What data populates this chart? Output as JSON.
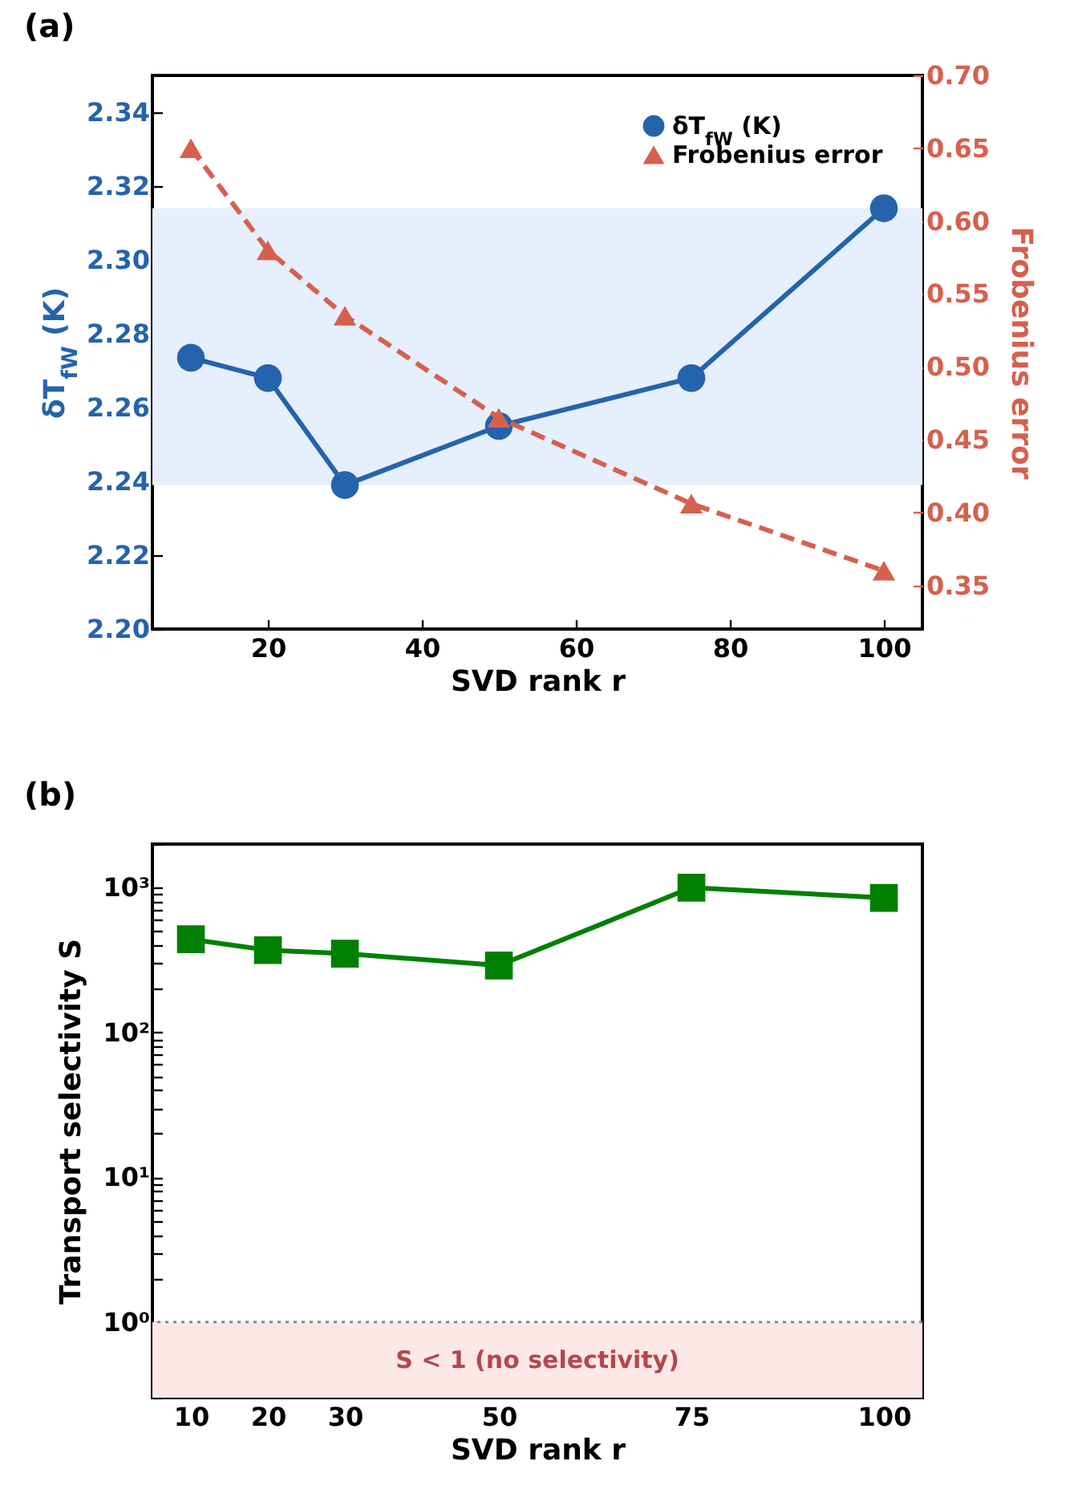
{
  "chart_data": [
    {
      "type": "line",
      "title": "(a)",
      "xlabel": "SVD rank r",
      "ylabel": "δT$_{fW}$ (K)",
      "y2label": "Frobenius error",
      "x": [
        10,
        20,
        30,
        50,
        75,
        100
      ],
      "series": [
        {
          "name": "δT$_{fW}$ (K)",
          "color": "#2563ad",
          "values": [
            2.2735,
            2.268,
            2.239,
            2.255,
            2.268,
            2.314
          ],
          "marker": "circle",
          "line_style": "solid"
        },
        {
          "name": "Frobenius error",
          "color": "#d6604d",
          "values": [
            0.65,
            0.58,
            0.535,
            0.465,
            0.406,
            0.36
          ],
          "axis": "y2",
          "marker": "triangle",
          "line_style": "dashed"
        }
      ],
      "xlim": [
        5,
        105
      ],
      "xticks": [
        20,
        40,
        60,
        80,
        100
      ],
      "ylim": [
        2.2,
        2.35
      ],
      "yticks": [
        {
          "value": 2.2,
          "label": "2.20"
        },
        {
          "value": 2.22,
          "label": "2.22"
        },
        {
          "value": 2.24,
          "label": "2.24"
        },
        {
          "value": 2.26,
          "label": "2.26"
        },
        {
          "value": 2.28,
          "label": "2.28"
        },
        {
          "value": 2.3,
          "label": "2.30"
        },
        {
          "value": 2.32,
          "label": "2.32"
        },
        {
          "value": 2.34,
          "label": "2.34"
        }
      ],
      "y2lim": [
        0.32,
        0.7
      ],
      "y2ticks": [
        {
          "value": 0.35,
          "label": "0.35"
        },
        {
          "value": 0.4,
          "label": "0.40"
        },
        {
          "value": 0.45,
          "label": "0.45"
        },
        {
          "value": 0.5,
          "label": "0.50"
        },
        {
          "value": 0.55,
          "label": "0.55"
        },
        {
          "value": 0.6,
          "label": "0.60"
        },
        {
          "value": 0.65,
          "label": "0.65"
        },
        {
          "value": 0.7,
          "label": "0.70"
        }
      ],
      "bands": [
        {
          "axis": "y",
          "from": 2.239,
          "to": 2.314,
          "color": "#e6effc"
        }
      ],
      "grid": false,
      "legend": "top right"
    },
    {
      "type": "line",
      "title": "(b)",
      "xlabel": "SVD rank r",
      "ylabel": "Transport selectivity S",
      "x": [
        10,
        20,
        30,
        50,
        75,
        100
      ],
      "series": [
        {
          "color": "#008000",
          "values": [
            440,
            370,
            350,
            290,
            1000,
            850
          ],
          "marker": "square",
          "line_style": "solid"
        }
      ],
      "xlim": [
        5,
        105
      ],
      "xticks": [
        10,
        20,
        30,
        50,
        75,
        100
      ],
      "ylim": [
        0.3,
        2000
      ],
      "log": "y",
      "yticks": [
        {
          "value": 0.3,
          "label": null
        },
        {
          "value": 0.4,
          "label": null
        },
        {
          "value": 0.5,
          "label": null
        },
        {
          "value": 0.6,
          "label": null
        },
        {
          "value": 0.7,
          "label": null
        },
        {
          "value": 0.8,
          "label": null
        },
        {
          "value": 0.9,
          "label": null
        },
        {
          "value": 1,
          "label": "10⁰"
        },
        {
          "value": 2,
          "label": null
        },
        {
          "value": 3,
          "label": null
        },
        {
          "value": 4,
          "label": null
        },
        {
          "value": 5,
          "label": null
        },
        {
          "value": 6,
          "label": null
        },
        {
          "value": 7,
          "label": null
        },
        {
          "value": 8,
          "label": null
        },
        {
          "value": 9,
          "label": null
        },
        {
          "value": 10,
          "label": "10¹"
        },
        {
          "value": 20,
          "label": null
        },
        {
          "value": 30,
          "label": null
        },
        {
          "value": 40,
          "label": null
        },
        {
          "value": 50,
          "label": null
        },
        {
          "value": 60,
          "label": null
        },
        {
          "value": 70,
          "label": null
        },
        {
          "value": 80,
          "label": null
        },
        {
          "value": 90,
          "label": null
        },
        {
          "value": 100,
          "label": "10²"
        },
        {
          "value": 200,
          "label": null
        },
        {
          "value": 300,
          "label": null
        },
        {
          "value": 400,
          "label": null
        },
        {
          "value": 500,
          "label": null
        },
        {
          "value": 600,
          "label": null
        },
        {
          "value": 700,
          "label": null
        },
        {
          "value": 800,
          "label": null
        },
        {
          "value": 900,
          "label": null
        },
        {
          "value": 1000,
          "label": "10³"
        },
        {
          "value": 2000,
          "label": null
        }
      ],
      "bands": [
        {
          "axis": "y",
          "from": 0.3,
          "to": 1,
          "label": "S < 1 (no selectivity)",
          "color": "#fde8e8"
        }
      ],
      "ref_lines": [
        {
          "axis": "y",
          "value": 1,
          "color": "#888888",
          "line_style": "dotted"
        }
      ],
      "grid": false,
      "legend": false
    }
  ]
}
